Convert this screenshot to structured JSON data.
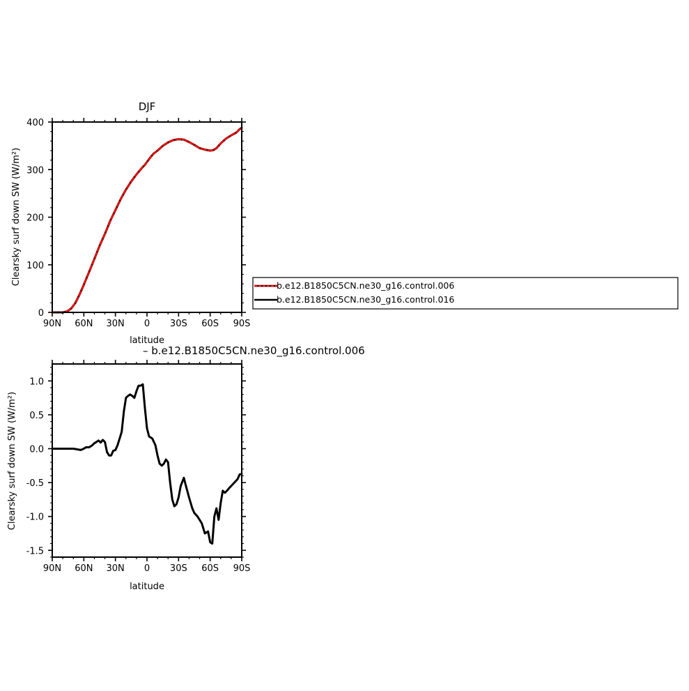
{
  "chart_data": [
    {
      "type": "line",
      "title": "DJF",
      "xlabel": "latitude",
      "ylabel": "Clearsky surf down SW (W/m²)",
      "xlim": [
        -90,
        90
      ],
      "ylim": [
        0,
        400
      ],
      "x_ticks": [
        {
          "value": -90,
          "label": "90N"
        },
        {
          "value": -60,
          "label": "60N"
        },
        {
          "value": -30,
          "label": "30N"
        },
        {
          "value": 0,
          "label": "0"
        },
        {
          "value": 30,
          "label": "30S"
        },
        {
          "value": 60,
          "label": "60S"
        },
        {
          "value": 90,
          "label": "90S"
        }
      ],
      "y_ticks": [
        {
          "value": 0,
          "label": "0"
        },
        {
          "value": 100,
          "label": "100"
        },
        {
          "value": 200,
          "label": "200"
        },
        {
          "value": 300,
          "label": "300"
        },
        {
          "value": 400,
          "label": "400"
        }
      ],
      "legend": {
        "placement": "right",
        "entries": [
          {
            "name": "b.e12.B1850C5CN.ne30_g16.control.006",
            "color": "#ff0000",
            "dash": true
          },
          {
            "name": "b.e12.B1850C5CN.ne30_g16.control.016",
            "color": "#000000",
            "dash": false
          }
        ]
      },
      "series": [
        {
          "name": "b.e12.B1850C5CN.ne30_g16.control.016",
          "color": "#000000",
          "x": [
            -90,
            -85,
            -80,
            -76,
            -72,
            -68,
            -64,
            -60,
            -55,
            -50,
            -45,
            -40,
            -35,
            -30,
            -25,
            -20,
            -15,
            -10,
            -5,
            -2,
            0,
            3,
            6,
            10,
            15,
            20,
            25,
            30,
            35,
            40,
            45,
            50,
            55,
            60,
            63,
            66,
            70,
            75,
            80,
            85,
            88,
            90
          ],
          "y": [
            0,
            0,
            0,
            2,
            8,
            20,
            38,
            58,
            85,
            112,
            140,
            165,
            192,
            215,
            238,
            258,
            275,
            290,
            303,
            310,
            316,
            325,
            333,
            340,
            350,
            357,
            362,
            364,
            363,
            358,
            352,
            345,
            342,
            340,
            341,
            345,
            355,
            365,
            372,
            378,
            385,
            388
          ]
        },
        {
          "name": "b.e12.B1850C5CN.ne30_g16.control.006",
          "color": "#ff0000",
          "x": [
            -90,
            -85,
            -80,
            -76,
            -72,
            -68,
            -64,
            -60,
            -55,
            -50,
            -45,
            -40,
            -35,
            -30,
            -25,
            -20,
            -15,
            -10,
            -5,
            -2,
            0,
            3,
            6,
            10,
            15,
            20,
            25,
            30,
            35,
            40,
            45,
            50,
            55,
            60,
            63,
            66,
            70,
            75,
            80,
            85,
            88,
            90
          ],
          "y": [
            0,
            0,
            0,
            2,
            8,
            20,
            38,
            58,
            85,
            112,
            140,
            165,
            192,
            215,
            238,
            258,
            275,
            290,
            303,
            310,
            316,
            325,
            333,
            340,
            350,
            357,
            362,
            364,
            363,
            358,
            352,
            345,
            342,
            340,
            341,
            345,
            355,
            365,
            372,
            378,
            385,
            388
          ]
        }
      ]
    },
    {
      "type": "line",
      "title": "– b.e12.B1850C5CN.ne30_g16.control.006",
      "xlabel": "latitude",
      "ylabel": "Clearsky surf down SW (W/m²)",
      "xlim": [
        -90,
        90
      ],
      "ylim": [
        -1.6,
        1.25
      ],
      "x_ticks": [
        {
          "value": -90,
          "label": "90N"
        },
        {
          "value": -60,
          "label": "60N"
        },
        {
          "value": -30,
          "label": "30N"
        },
        {
          "value": 0,
          "label": "0"
        },
        {
          "value": 30,
          "label": "30S"
        },
        {
          "value": 60,
          "label": "60S"
        },
        {
          "value": 90,
          "label": "90S"
        }
      ],
      "y_ticks": [
        {
          "value": -1.5,
          "label": "-1.5"
        },
        {
          "value": -1.0,
          "label": "-1.0"
        },
        {
          "value": -0.5,
          "label": "-0.5"
        },
        {
          "value": 0.0,
          "label": "0.0"
        },
        {
          "value": 0.5,
          "label": "0.5"
        },
        {
          "value": 1.0,
          "label": "1.0"
        }
      ],
      "series": [
        {
          "color": "#000000",
          "x": [
            -90,
            -80,
            -75,
            -70,
            -66,
            -63,
            -60,
            -58,
            -55,
            -52,
            -50,
            -48,
            -46,
            -44,
            -42,
            -40,
            -38,
            -36,
            -34,
            -32,
            -30,
            -28,
            -26,
            -24,
            -22,
            -20,
            -18,
            -16,
            -14,
            -12,
            -10,
            -8,
            -6,
            -4,
            -2,
            0,
            2,
            5,
            8,
            10,
            12,
            14,
            16,
            18,
            20,
            22,
            24,
            26,
            28,
            30,
            32,
            35,
            37,
            40,
            43,
            45,
            48,
            52,
            55,
            58,
            60,
            62,
            64,
            66,
            68,
            70,
            72,
            74,
            76,
            78,
            80,
            83,
            86,
            88,
            90
          ],
          "y": [
            0,
            0,
            0,
            0,
            -0.01,
            -0.02,
            0.0,
            0.02,
            0.02,
            0.05,
            0.08,
            0.1,
            0.12,
            0.09,
            0.13,
            0.1,
            -0.05,
            -0.1,
            -0.1,
            -0.03,
            -0.02,
            0.05,
            0.15,
            0.25,
            0.55,
            0.75,
            0.78,
            0.8,
            0.78,
            0.75,
            0.85,
            0.93,
            0.93,
            0.95,
            0.6,
            0.3,
            0.18,
            0.15,
            0.05,
            -0.1,
            -0.22,
            -0.25,
            -0.22,
            -0.16,
            -0.2,
            -0.5,
            -0.75,
            -0.85,
            -0.82,
            -0.72,
            -0.55,
            -0.43,
            -0.55,
            -0.72,
            -0.88,
            -0.95,
            -1.0,
            -1.1,
            -1.25,
            -1.22,
            -1.38,
            -1.4,
            -1.0,
            -0.88,
            -1.05,
            -0.8,
            -0.62,
            -0.65,
            -0.62,
            -0.58,
            -0.55,
            -0.5,
            -0.45,
            -0.38,
            -0.37
          ]
        }
      ]
    }
  ]
}
